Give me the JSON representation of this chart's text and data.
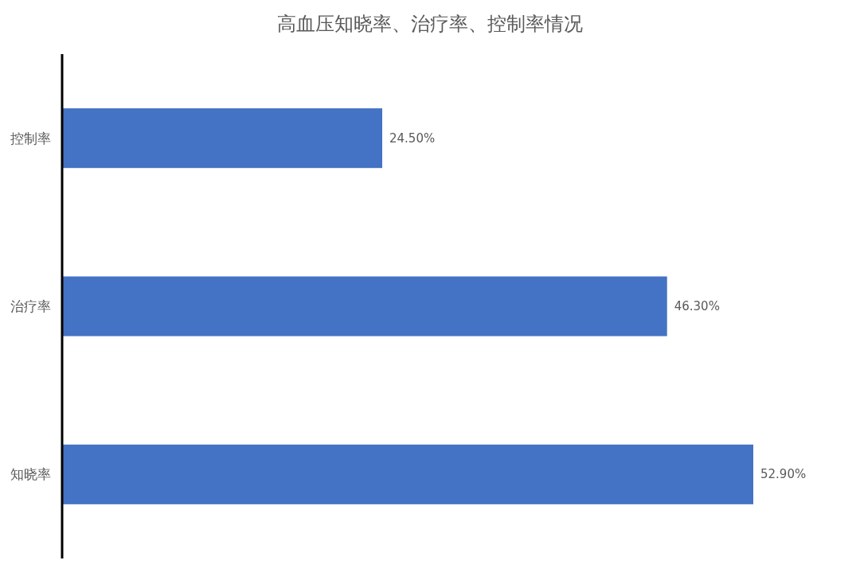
{
  "chart_data": {
    "type": "bar",
    "orientation": "horizontal",
    "title": "高血压知晓率、治疗率、控制率情况",
    "categories": [
      "控制率",
      "治疗率",
      "知晓率"
    ],
    "values": [
      24.5,
      46.3,
      52.9
    ],
    "value_labels": [
      "24.50%",
      "46.30%",
      "52.90%"
    ],
    "color": "#4472c4"
  }
}
